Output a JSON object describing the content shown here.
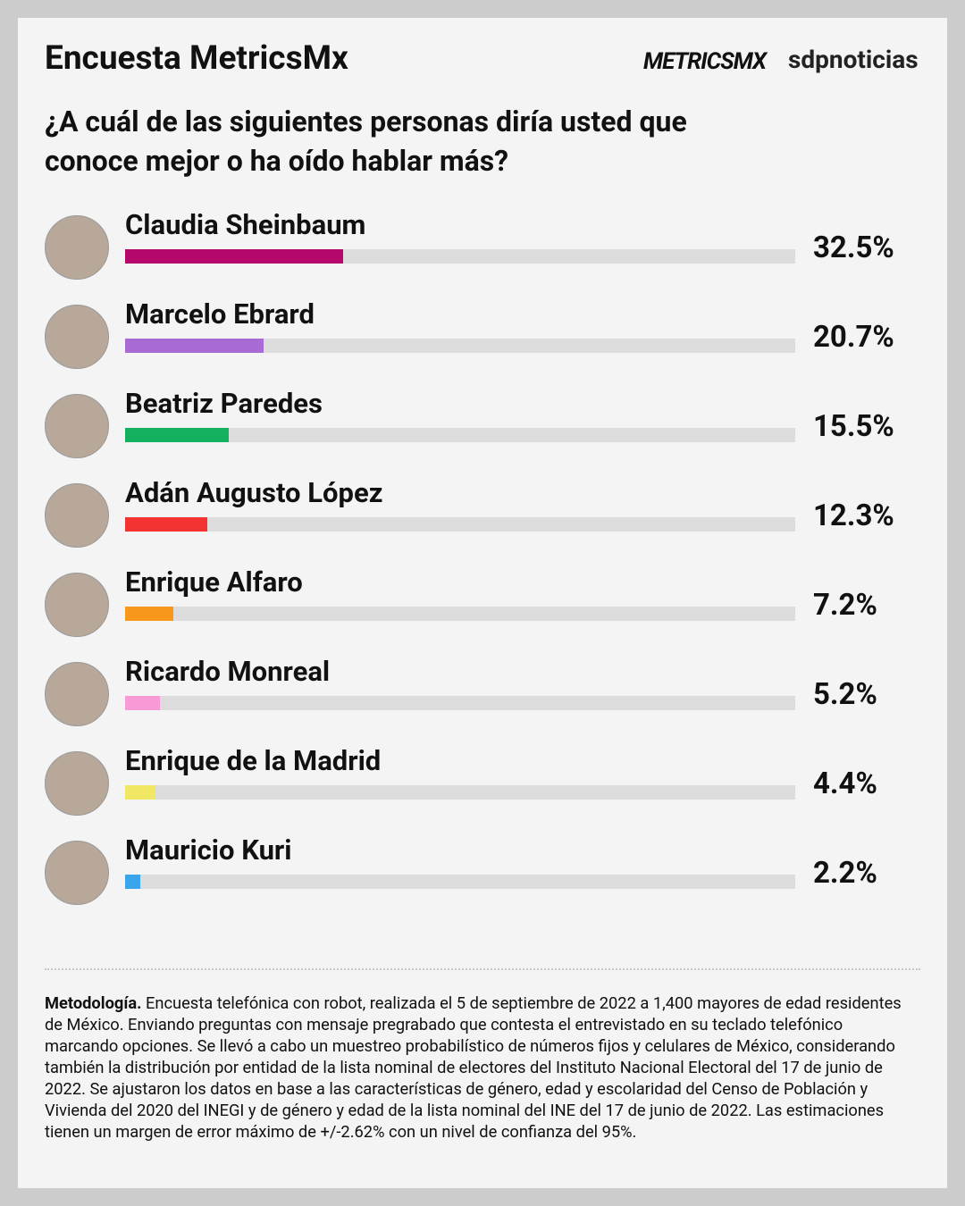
{
  "chart_data": {
    "type": "bar",
    "orientation": "horizontal",
    "title": "Encuesta MetricsMx",
    "logos": [
      "METRICSMX",
      "sdpnoticias"
    ],
    "subtitle": "¿A cuál de las siguientes personas diría usted que conoce mejor o ha oído hablar más?",
    "categories": [
      "Claudia Sheinbaum",
      "Marcelo Ebrard",
      "Beatriz Paredes",
      "Adán Augusto López",
      "Enrique Alfaro",
      "Ricardo Monreal",
      "Enrique de la Madrid",
      "Mauricio Kuri"
    ],
    "values": [
      32.5,
      20.7,
      15.5,
      12.3,
      7.2,
      5.2,
      4.4,
      2.2
    ],
    "value_labels": [
      "32.5%",
      "20.7%",
      "15.5%",
      "12.3%",
      "7.2%",
      "5.2%",
      "4.4%",
      "2.2%"
    ],
    "colors": [
      "#b5086b",
      "#a86bd3",
      "#13b060",
      "#f53232",
      "#f7981d",
      "#f79ad6",
      "#f0e765",
      "#3aa5ec"
    ],
    "track_color": "#dcdcdc",
    "xlim": [
      0,
      100
    ],
    "note_label": "Metodología.",
    "note": "Encuesta telefónica con robot, realizada el 5 de septiembre de 2022 a 1,400 mayores de edad residentes de México. Enviando preguntas con mensaje pregrabado que contesta el entrevistado en su teclado telefónico marcando opciones. Se llevó a cabo un muestreo probabilístico de números fijos y celulares de México, considerando también la distribución por entidad de la lista nominal de electores del Instituto Nacional Electoral del 17 de junio de 2022. Se ajustaron los datos en base a las características de género, edad y escolaridad del Censo de Población y Vivienda del 2020 del INEGI y de género y edad de la lista nominal del INE del 17 de junio de 2022. Las estimaciones tienen un margen de error máximo de +/-2.62% con un nivel de confianza del 95%."
  }
}
